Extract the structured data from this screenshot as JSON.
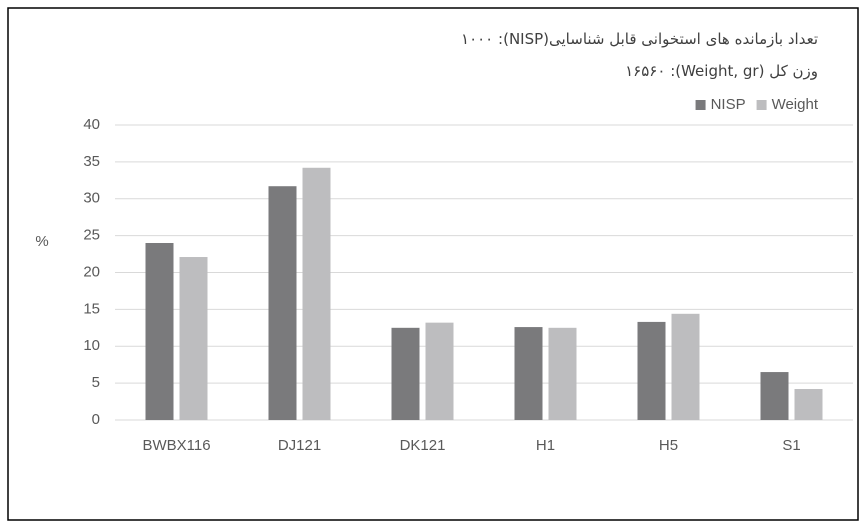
{
  "chart_data": {
    "type": "bar",
    "annotations": [
      "تعداد بازمانده های استخوانی قابل شناسایی(NISP): ۱۰۰۰",
      "وزن کل (Weight, gr): ۱۶۵۶۰"
    ],
    "y_label": "%",
    "categories": [
      "BWBX116",
      "DJ121",
      "DK121",
      "H1",
      "H5",
      "S1"
    ],
    "series": [
      {
        "name": "NISP",
        "color": "#7a7a7c",
        "values": [
          24.0,
          31.7,
          12.5,
          12.6,
          13.3,
          6.5
        ]
      },
      {
        "name": "Weight",
        "color": "#bdbdbf",
        "values": [
          22.1,
          34.2,
          13.2,
          12.5,
          14.4,
          4.2
        ]
      }
    ],
    "ylim": [
      0,
      40
    ],
    "yticks": [
      0,
      5,
      10,
      15,
      20,
      25,
      30,
      35,
      40
    ],
    "grid": true,
    "legend": "top-right"
  }
}
